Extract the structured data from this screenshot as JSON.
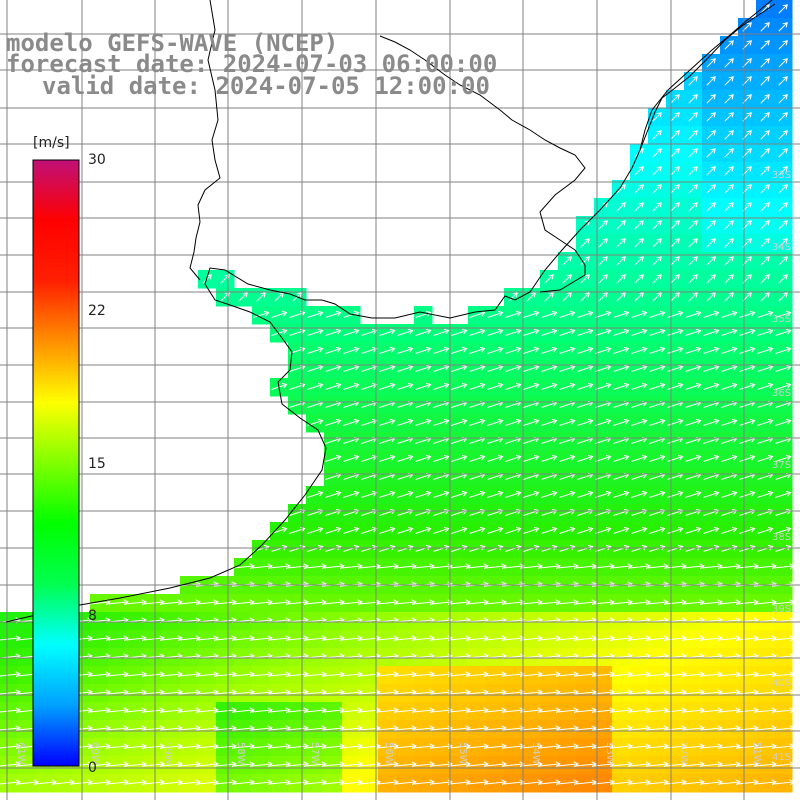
{
  "title": {
    "model": "modelo GEFS-WAVE (NCEP)",
    "forecast": "forecast date: 2024-07-03 06:00:00",
    "valid": "valid date: 2024-07-05 12:00:00"
  },
  "colorbar": {
    "unit": "[m/s]",
    "ticks": [
      "30",
      "22",
      "15",
      "8",
      "0"
    ],
    "tick_values": [
      30,
      22,
      15,
      8,
      0
    ],
    "range": [
      0,
      30
    ],
    "colors": [
      "#0000ff",
      "#00a0ff",
      "#00ffff",
      "#00ff50",
      "#00ff00",
      "#80ff00",
      "#ffff00",
      "#ff9000",
      "#ff2000",
      "#ff0000",
      "#c01078"
    ]
  },
  "map": {
    "lat_labels": [
      "33S",
      "34S",
      "35S",
      "36S",
      "37S",
      "38S",
      "39S",
      "40S",
      "41S"
    ],
    "lon_labels": [
      "61W",
      "60W",
      "59W",
      "58W",
      "57W",
      "56W",
      "55W",
      "54W",
      "53W",
      "52W",
      "51W"
    ],
    "wind_direction": "southwest to northeast (arrows pointing east-northeast)",
    "grid": true,
    "land_color": "#ffffff",
    "coastline_color": "#000000",
    "grid_color": "#808080",
    "arrow_color": "#ffffff"
  }
}
